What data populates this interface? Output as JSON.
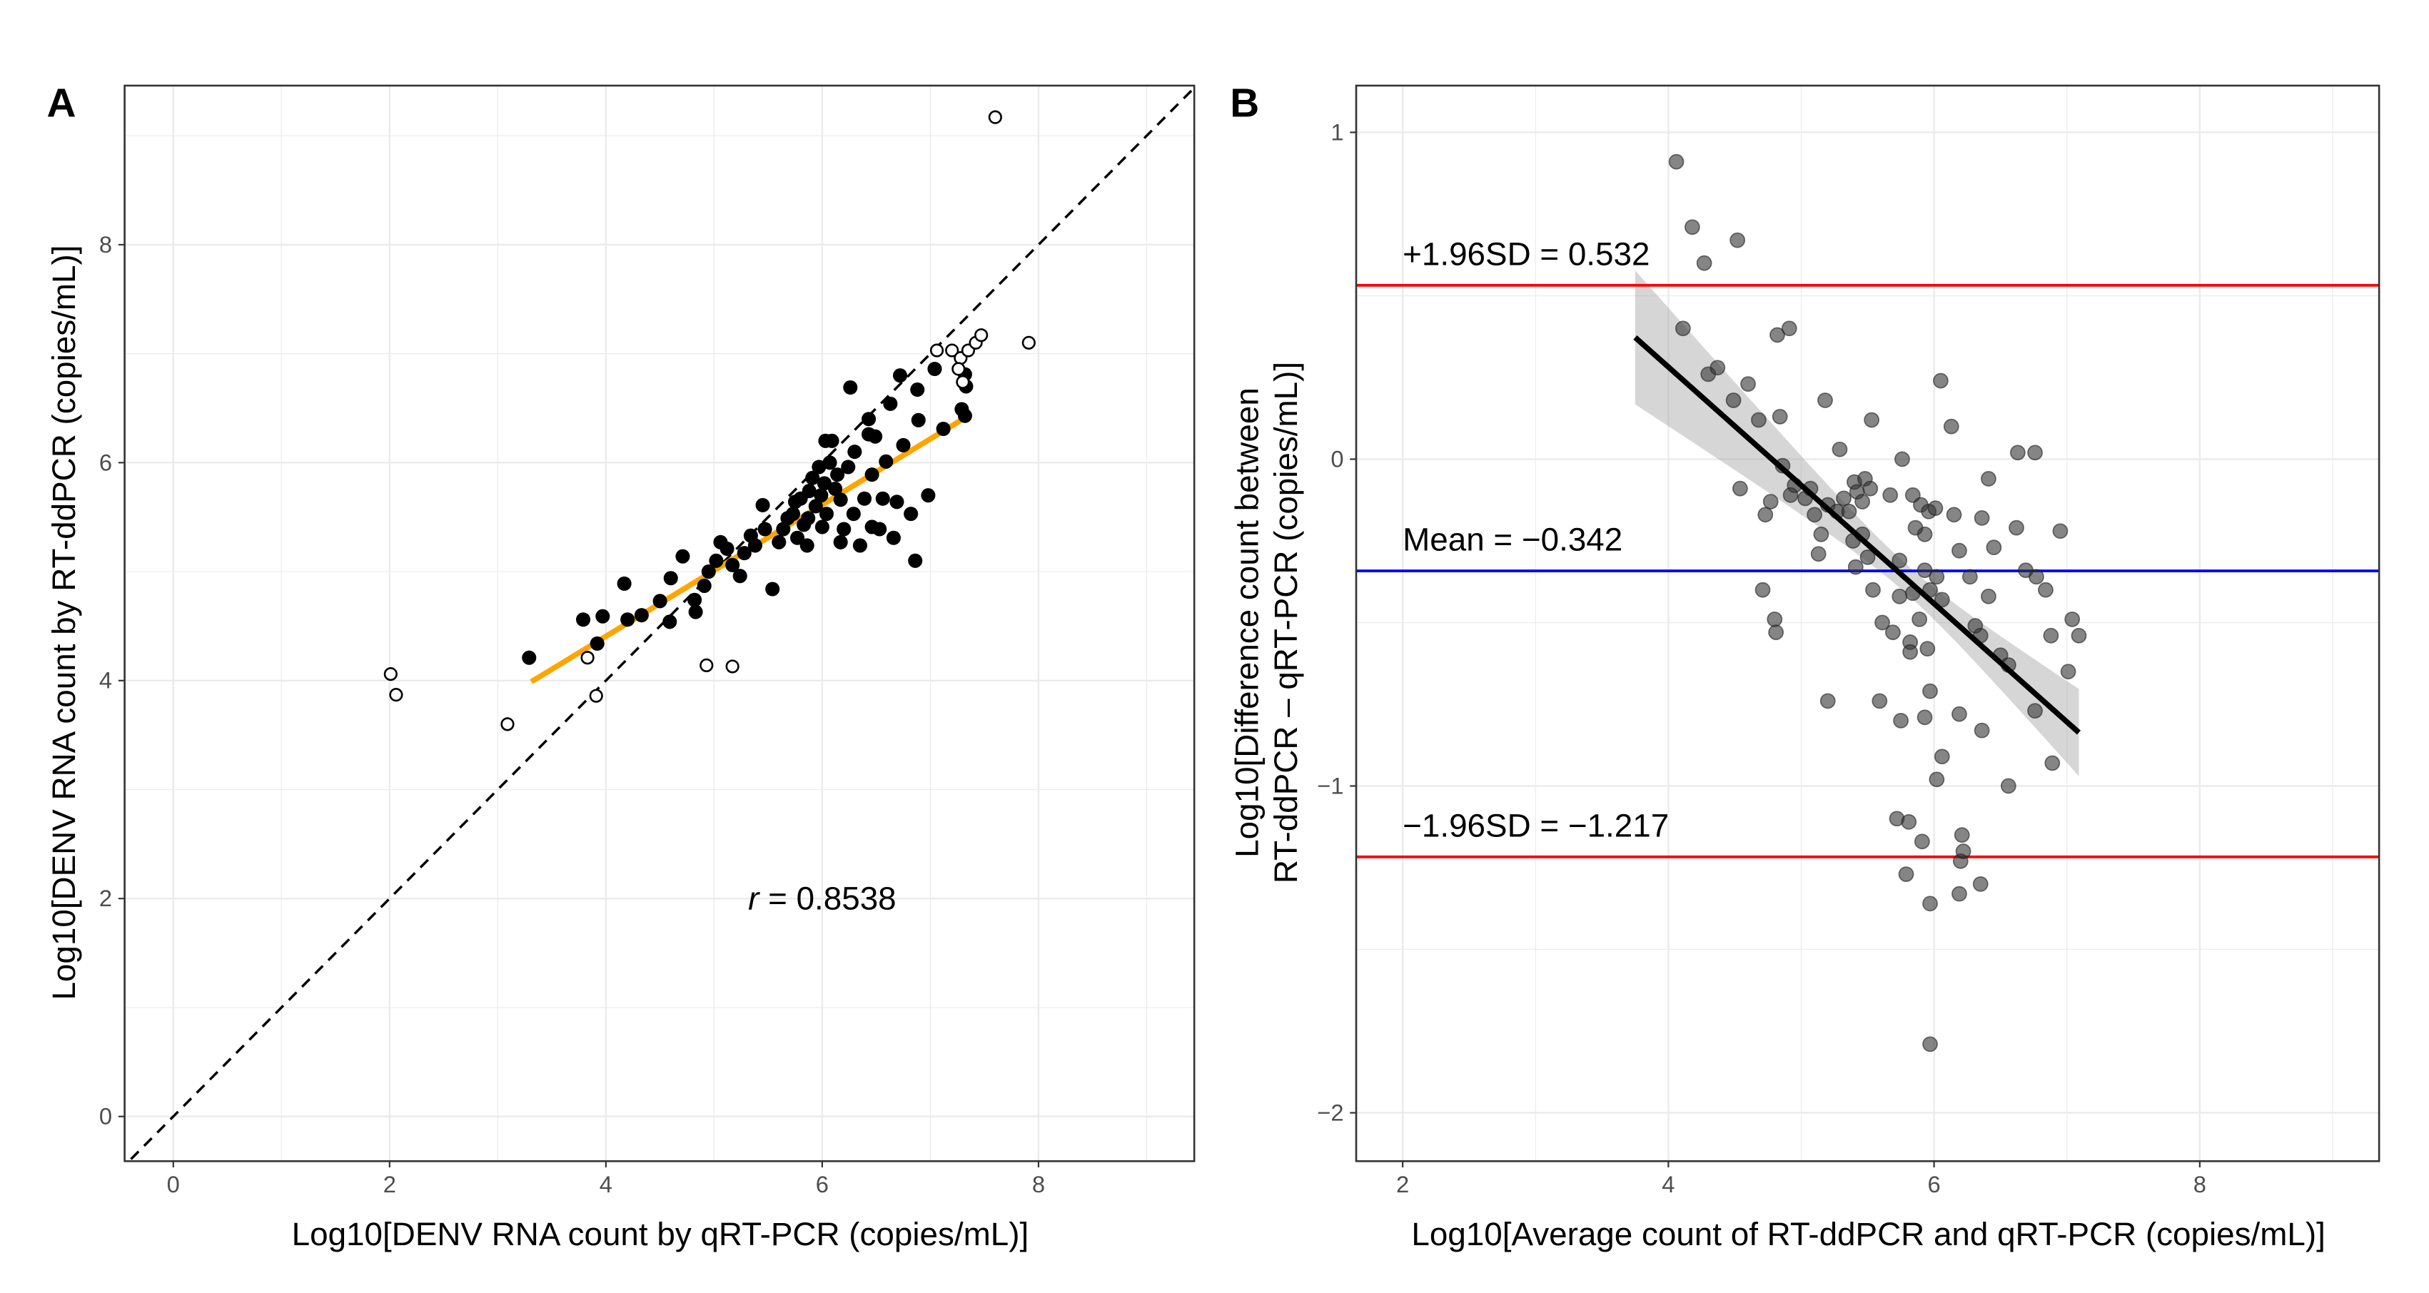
{
  "chart_data": [
    {
      "panel": "A",
      "type": "scatter",
      "xlabel": "Log10[DENV RNA count by qRT-PCR (copies/mL)]",
      "ylabel": "Log10[DENV RNA count by RT-ddPCR (copies/mL)]",
      "xlim": [
        -0.45,
        9.44
      ],
      "ylim": [
        -0.41,
        9.46
      ],
      "xticks": [
        0,
        2,
        4,
        6,
        8
      ],
      "yticks": [
        0,
        2,
        4,
        6,
        8
      ],
      "grid": true,
      "annotation": {
        "italic": "r",
        "text": " = 0.8538",
        "x": 6.0,
        "y": 2.0
      },
      "identity_line": {
        "style": "dashed",
        "color": "#000000"
      },
      "fit_line": {
        "slope": 0.604,
        "intercept": 1.99,
        "x_range": [
          3.31,
          7.35
        ],
        "color": "#FFA500"
      },
      "series": [
        {
          "name": "included",
          "marker": "filled-circle",
          "color": "#000000",
          "points": [
            [
              3.29,
              4.21
            ],
            [
              3.79,
              4.56
            ],
            [
              3.97,
              4.59
            ],
            [
              3.92,
              4.34
            ],
            [
              4.17,
              4.89
            ],
            [
              4.2,
              4.56
            ],
            [
              4.33,
              4.6
            ],
            [
              4.5,
              4.73
            ],
            [
              4.59,
              4.54
            ],
            [
              4.6,
              4.94
            ],
            [
              4.71,
              5.14
            ],
            [
              4.82,
              4.74
            ],
            [
              4.83,
              4.63
            ],
            [
              4.91,
              4.87
            ],
            [
              4.95,
              5.0
            ],
            [
              5.02,
              5.1
            ],
            [
              5.06,
              5.27
            ],
            [
              5.12,
              5.21
            ],
            [
              5.17,
              5.06
            ],
            [
              5.24,
              4.96
            ],
            [
              5.28,
              5.17
            ],
            [
              5.34,
              5.33
            ],
            [
              5.38,
              5.24
            ],
            [
              5.45,
              5.61
            ],
            [
              5.47,
              5.39
            ],
            [
              5.54,
              4.84
            ],
            [
              5.6,
              5.27
            ],
            [
              5.64,
              5.39
            ],
            [
              5.68,
              5.49
            ],
            [
              5.73,
              5.53
            ],
            [
              5.77,
              5.31
            ],
            [
              5.8,
              5.67
            ],
            [
              5.83,
              5.43
            ],
            [
              5.86,
              5.24
            ],
            [
              5.88,
              5.74
            ],
            [
              5.91,
              5.86
            ],
            [
              5.94,
              5.6
            ],
            [
              5.97,
              5.96
            ],
            [
              5.99,
              5.7
            ],
            [
              6.02,
              5.81
            ],
            [
              6.04,
              5.53
            ],
            [
              6.07,
              6.0
            ],
            [
              6.09,
              6.2
            ],
            [
              6.12,
              5.76
            ],
            [
              6.14,
              5.89
            ],
            [
              6.17,
              5.66
            ],
            [
              6.2,
              5.39
            ],
            [
              6.24,
              5.96
            ],
            [
              6.29,
              5.53
            ],
            [
              6.3,
              6.1
            ],
            [
              6.35,
              5.24
            ],
            [
              6.39,
              5.67
            ],
            [
              6.43,
              6.4
            ],
            [
              6.46,
              5.89
            ],
            [
              6.49,
              6.24
            ],
            [
              6.53,
              5.39
            ],
            [
              6.56,
              5.67
            ],
            [
              6.59,
              6.01
            ],
            [
              6.63,
              6.54
            ],
            [
              6.66,
              5.31
            ],
            [
              6.69,
              5.64
            ],
            [
              6.72,
              6.8
            ],
            [
              6.75,
              6.16
            ],
            [
              6.82,
              5.53
            ],
            [
              6.86,
              5.1
            ],
            [
              6.89,
              6.39
            ],
            [
              6.98,
              5.7
            ],
            [
              7.04,
              6.86
            ],
            [
              7.12,
              6.31
            ],
            [
              7.29,
              6.49
            ],
            [
              7.32,
              6.81
            ],
            [
              7.32,
              6.43
            ],
            [
              7.33,
              6.7
            ],
            [
              6.88,
              6.67
            ],
            [
              6.26,
              6.69
            ],
            [
              6.43,
              6.26
            ],
            [
              6.03,
              6.2
            ],
            [
              5.75,
              5.64
            ],
            [
              5.87,
              5.49
            ],
            [
              6.0,
              5.41
            ],
            [
              6.46,
              5.41
            ],
            [
              6.17,
              5.27
            ]
          ]
        },
        {
          "name": "outliers",
          "marker": "open-circle",
          "color": "#000000",
          "points": [
            [
              2.01,
              4.06
            ],
            [
              2.06,
              3.87
            ],
            [
              3.09,
              3.6
            ],
            [
              3.83,
              4.21
            ],
            [
              3.91,
              3.86
            ],
            [
              4.93,
              4.14
            ],
            [
              5.17,
              4.13
            ],
            [
              7.6,
              9.17
            ],
            [
              7.91,
              7.1
            ],
            [
              7.06,
              7.03
            ],
            [
              7.2,
              7.03
            ],
            [
              7.28,
              6.96
            ],
            [
              7.35,
              7.03
            ],
            [
              7.42,
              7.1
            ],
            [
              7.47,
              7.17
            ],
            [
              7.26,
              6.86
            ],
            [
              7.3,
              6.74
            ]
          ]
        }
      ]
    },
    {
      "panel": "B",
      "type": "scatter",
      "xlabel": "Log10[Average count of RT-ddPCR and qRT-PCR (copies/mL)]",
      "ylabel": [
        "Log10[Difference count between",
        "RT-ddPCR – qRT-PCR (copies/mL)]"
      ],
      "xlim": [
        1.65,
        9.35
      ],
      "ylim": [
        -2.148,
        1.143
      ],
      "xticks": [
        2,
        4,
        6,
        8
      ],
      "yticks": [
        1,
        0,
        -1,
        -2
      ],
      "ytick_labels": [
        "1",
        "0",
        "−1",
        "−2"
      ],
      "grid": true,
      "hlines": [
        {
          "label": "+1.96SD = 0.532",
          "y": 0.532,
          "color": "#FF0000"
        },
        {
          "label": "Mean = −0.342",
          "y": -0.342,
          "color": "#0000FF"
        },
        {
          "label": "−1.96SD = −1.217",
          "y": -1.217,
          "color": "#FF0000"
        }
      ],
      "fit_line": {
        "slope": -0.362,
        "intercept": 1.73,
        "x_range": [
          3.75,
          7.09
        ],
        "color": "#000000",
        "ci_band_color": "#999999"
      },
      "series": [
        {
          "name": "differences",
          "marker": "filled-circle-translucent",
          "color": "#333333",
          "points": [
            [
              4.06,
              0.91
            ],
            [
              4.18,
              0.71
            ],
            [
              4.27,
              0.6
            ],
            [
              4.52,
              0.67
            ],
            [
              4.11,
              0.4
            ],
            [
              4.3,
              0.26
            ],
            [
              4.37,
              0.28
            ],
            [
              4.49,
              0.18
            ],
            [
              4.6,
              0.23
            ],
            [
              4.68,
              0.12
            ],
            [
              4.82,
              0.38
            ],
            [
              4.91,
              0.4
            ],
            [
              4.84,
              0.13
            ],
            [
              4.54,
              -0.09
            ],
            [
              4.86,
              -0.02
            ],
            [
              4.95,
              -0.08
            ],
            [
              4.73,
              -0.17
            ],
            [
              4.77,
              -0.13
            ],
            [
              4.92,
              -0.11
            ],
            [
              5.03,
              -0.12
            ],
            [
              5.07,
              -0.09
            ],
            [
              5.1,
              -0.17
            ],
            [
              5.18,
              0.18
            ],
            [
              5.15,
              -0.23
            ],
            [
              5.13,
              -0.29
            ],
            [
              4.71,
              -0.4
            ],
            [
              4.8,
              -0.49
            ],
            [
              4.81,
              -0.53
            ],
            [
              5.2,
              -0.14
            ],
            [
              5.27,
              -0.16
            ],
            [
              5.32,
              -0.12
            ],
            [
              5.36,
              -0.16
            ],
            [
              5.4,
              -0.07
            ],
            [
              5.42,
              -0.1
            ],
            [
              5.46,
              -0.13
            ],
            [
              5.48,
              -0.06
            ],
            [
              5.29,
              0.03
            ],
            [
              5.52,
              -0.09
            ],
            [
              5.53,
              0.12
            ],
            [
              5.46,
              -0.23
            ],
            [
              5.41,
              -0.33
            ],
            [
              5.39,
              -0.25
            ],
            [
              5.5,
              -0.3
            ],
            [
              5.54,
              -0.4
            ],
            [
              5.61,
              -0.5
            ],
            [
              5.69,
              -0.53
            ],
            [
              5.74,
              -0.42
            ],
            [
              5.74,
              -0.31
            ],
            [
              5.76,
              0.0
            ],
            [
              5.67,
              -0.11
            ],
            [
              5.84,
              -0.11
            ],
            [
              5.9,
              -0.14
            ],
            [
              5.96,
              -0.16
            ],
            [
              6.01,
              -0.15
            ],
            [
              5.93,
              -0.23
            ],
            [
              5.86,
              -0.21
            ],
            [
              5.93,
              -0.34
            ],
            [
              5.97,
              -0.4
            ],
            [
              6.02,
              -0.36
            ],
            [
              6.06,
              -0.43
            ],
            [
              5.84,
              -0.41
            ],
            [
              5.89,
              -0.49
            ],
            [
              5.82,
              -0.56
            ],
            [
              5.82,
              -0.59
            ],
            [
              5.95,
              -0.58
            ],
            [
              6.05,
              0.24
            ],
            [
              6.13,
              0.1
            ],
            [
              6.19,
              -0.28
            ],
            [
              6.15,
              -0.17
            ],
            [
              6.36,
              -0.18
            ],
            [
              6.41,
              -0.06
            ],
            [
              6.45,
              -0.27
            ],
            [
              6.27,
              -0.36
            ],
            [
              6.41,
              -0.42
            ],
            [
              6.31,
              -0.51
            ],
            [
              6.35,
              -0.54
            ],
            [
              6.5,
              -0.6
            ],
            [
              6.56,
              -0.63
            ],
            [
              6.62,
              -0.21
            ],
            [
              6.69,
              -0.34
            ],
            [
              6.77,
              -0.36
            ],
            [
              6.84,
              -0.4
            ],
            [
              6.63,
              0.02
            ],
            [
              6.76,
              0.02
            ],
            [
              6.95,
              -0.22
            ],
            [
              6.88,
              -0.54
            ],
            [
              7.04,
              -0.49
            ],
            [
              7.09,
              -0.54
            ],
            [
              7.01,
              -0.65
            ],
            [
              6.89,
              -0.93
            ],
            [
              6.76,
              -0.77
            ],
            [
              6.56,
              -1.0
            ],
            [
              6.36,
              -0.83
            ],
            [
              6.19,
              -0.78
            ],
            [
              6.06,
              -0.91
            ],
            [
              6.02,
              -0.98
            ],
            [
              5.97,
              -0.71
            ],
            [
              5.93,
              -0.79
            ],
            [
              5.75,
              -0.8
            ],
            [
              5.59,
              -0.74
            ],
            [
              5.2,
              -0.74
            ],
            [
              5.72,
              -1.1
            ],
            [
              5.81,
              -1.11
            ],
            [
              5.91,
              -1.17
            ],
            [
              5.79,
              -1.27
            ],
            [
              5.97,
              -1.36
            ],
            [
              6.19,
              -1.33
            ],
            [
              6.2,
              -1.23
            ],
            [
              6.22,
              -1.2
            ],
            [
              6.21,
              -1.15
            ],
            [
              6.35,
              -1.3
            ],
            [
              5.97,
              -1.79
            ]
          ]
        }
      ]
    }
  ]
}
